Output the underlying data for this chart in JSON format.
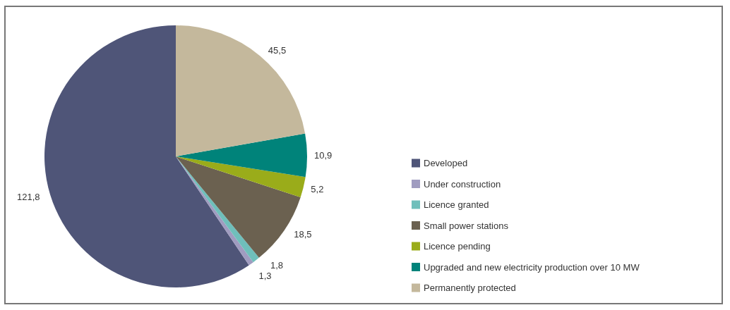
{
  "chart_data": {
    "type": "pie",
    "categories": [
      "Developed",
      "Under construction",
      "Licence granted",
      "Small power stations",
      "Licence pending",
      "Upgraded and new electricity production over 10 MW",
      "Permanently protected"
    ],
    "values": [
      121.8,
      1.3,
      1.8,
      18.5,
      5.2,
      10.9,
      45.5
    ],
    "value_labels": [
      "121,8",
      "1,3",
      "1,8",
      "18,5",
      "5,2",
      "10,9",
      "45,5"
    ],
    "colors": [
      "#4f5578",
      "#a09cc0",
      "#6fbfbb",
      "#6b6150",
      "#9aac1a",
      "#00837a",
      "#c4b89c"
    ],
    "legend": "right"
  }
}
